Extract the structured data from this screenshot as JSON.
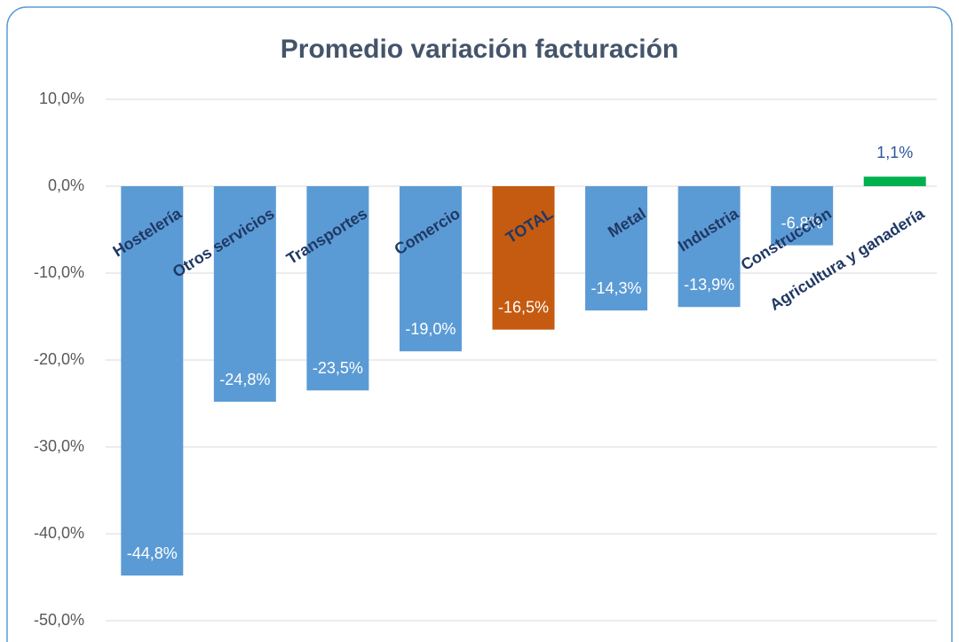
{
  "chart_data": {
    "type": "bar",
    "title": "Promedio variación facturación",
    "categories": [
      "Hostelería",
      "Otros servicios",
      "Transportes",
      "Comercio",
      "TOTAL",
      "Metal",
      "Industria",
      "Construcción",
      "Agricultura y ganadería"
    ],
    "values": [
      -44.8,
      -24.8,
      -23.5,
      -19.0,
      -16.5,
      -14.3,
      -13.9,
      -6.8,
      1.1
    ],
    "value_labels": [
      "-44,8%",
      "-24,8%",
      "-23,5%",
      "-19,0%",
      "-16,5%",
      "-14,3%",
      "-13,9%",
      "-6,8%",
      "1,1%"
    ],
    "colors": [
      "#5b9bd5",
      "#5b9bd5",
      "#5b9bd5",
      "#5b9bd5",
      "#c55a11",
      "#5b9bd5",
      "#5b9bd5",
      "#5b9bd5",
      "#00b050"
    ],
    "ylim": [
      -50,
      10
    ],
    "yticks": [
      {
        "value": 10,
        "label": "10,0%"
      },
      {
        "value": 0,
        "label": "0,0%"
      },
      {
        "value": -10,
        "label": "-10,0%"
      },
      {
        "value": -20,
        "label": "-20,0%"
      },
      {
        "value": -30,
        "label": "-30,0%"
      },
      {
        "value": -40,
        "label": "-40,0%"
      },
      {
        "value": -50,
        "label": "-50,0%"
      }
    ],
    "grid": true
  }
}
